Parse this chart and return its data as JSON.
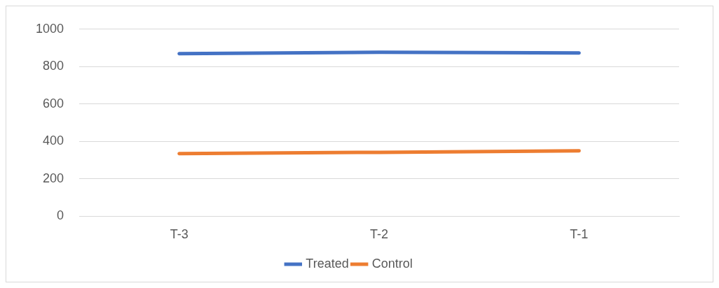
{
  "chart_data": {
    "type": "line",
    "categories": [
      "T-3",
      "T-2",
      "T-1"
    ],
    "series": [
      {
        "name": "Treated",
        "color": "#4472c4",
        "values": [
          869,
          877,
          873
        ]
      },
      {
        "name": "Control",
        "color": "#ed7d31",
        "values": [
          335,
          342,
          350
        ]
      }
    ],
    "ylim": [
      0,
      1000
    ],
    "yticks": [
      0,
      200,
      400,
      600,
      800,
      1000
    ],
    "grid": "y",
    "legend": "bottom",
    "marker": "none",
    "line_style": "solid"
  }
}
